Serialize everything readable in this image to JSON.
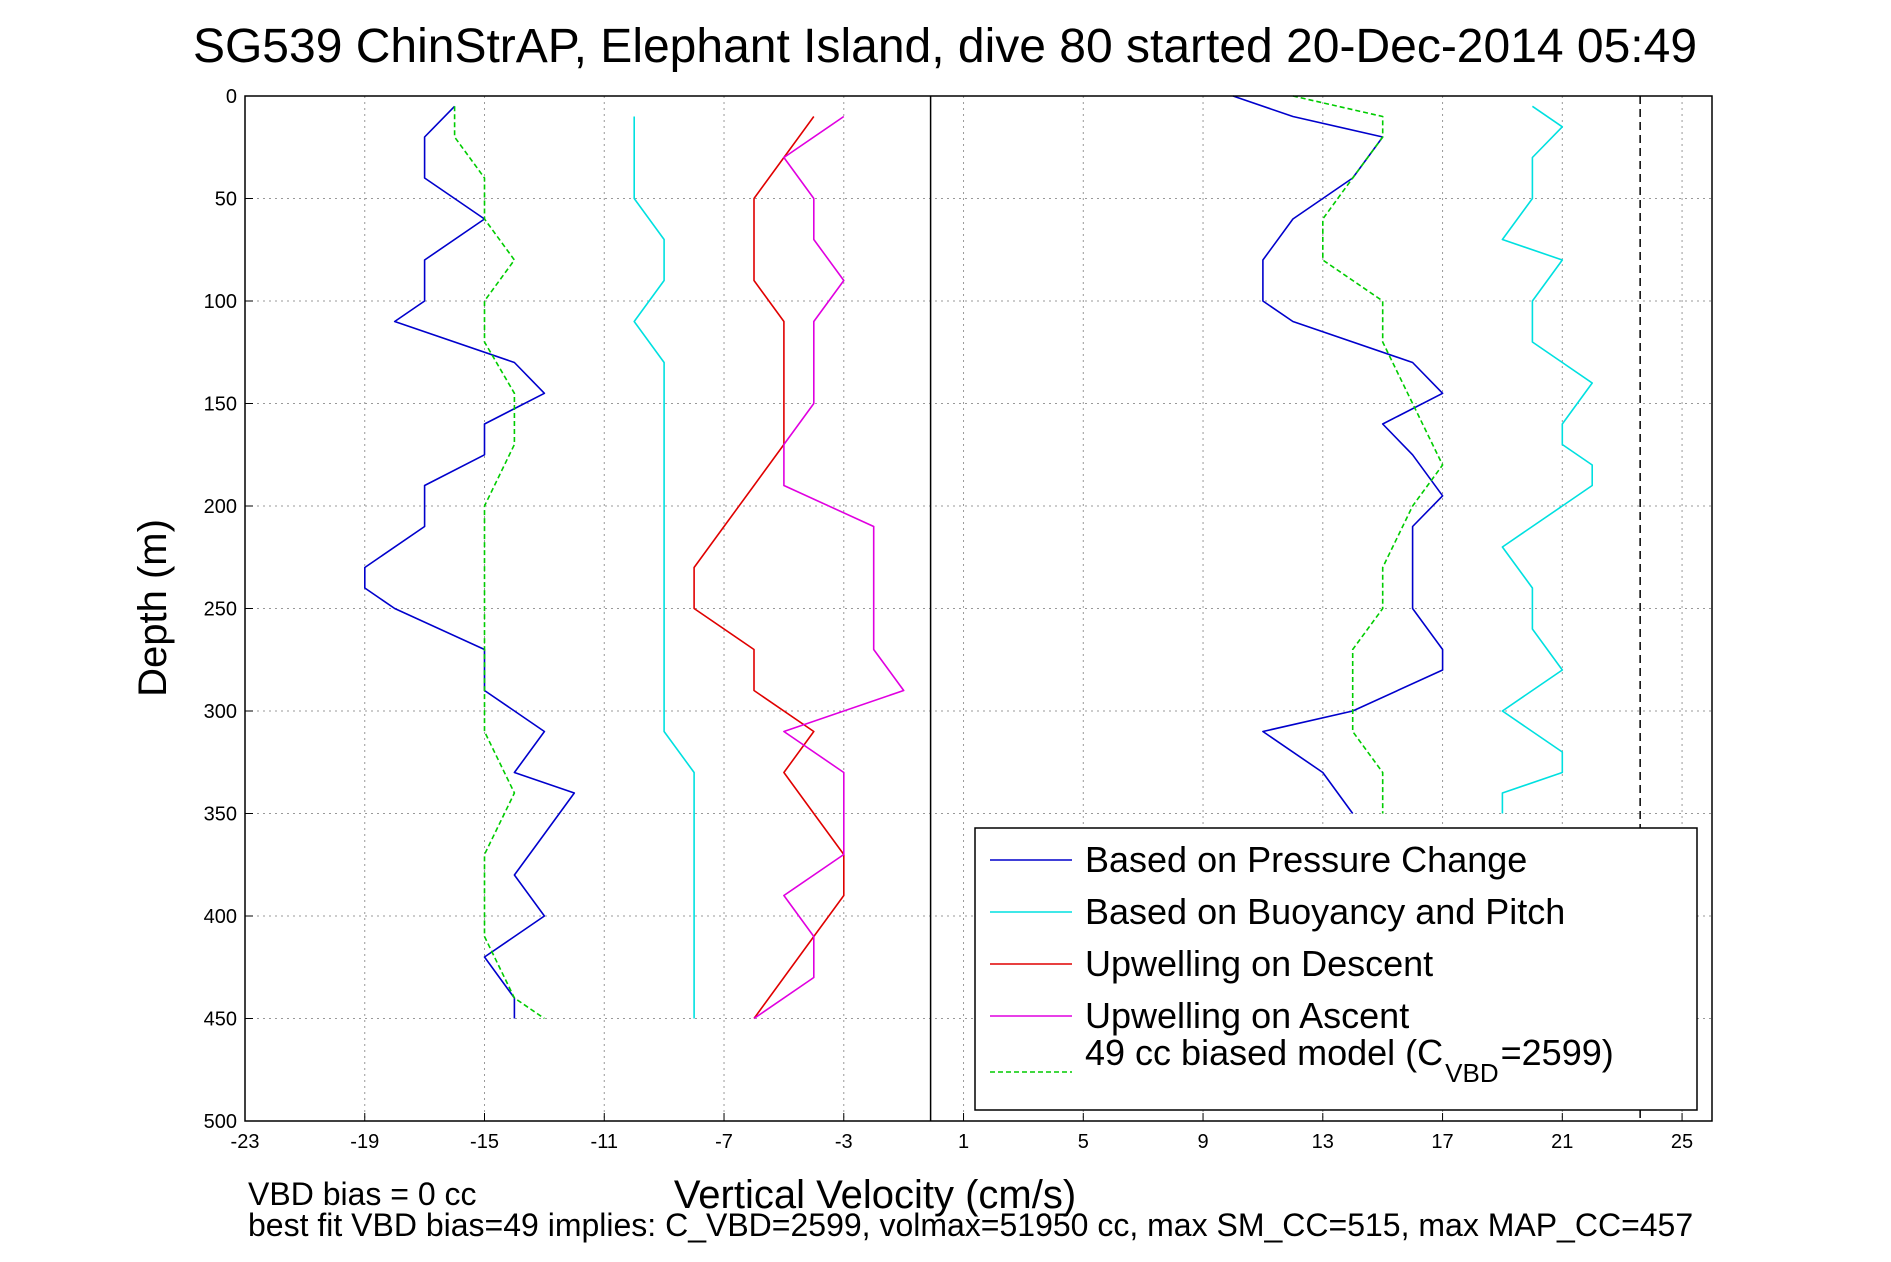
{
  "chart_data": {
    "type": "line",
    "title": "SG539 ChinStrAP, Elephant Island, dive 80 started 20-Dec-2014 05:49",
    "xlabel": "Vertical Velocity (cm/s)",
    "ylabel": "Depth (m)",
    "xlim": [
      -23,
      26
    ],
    "ylim": [
      0,
      500
    ],
    "y_reversed": true,
    "grid": true,
    "xticks": [
      -23,
      -19,
      -15,
      -11,
      -7,
      -3,
      1,
      5,
      9,
      13,
      17,
      21,
      25
    ],
    "yticks": [
      0,
      50,
      100,
      150,
      200,
      250,
      300,
      350,
      400,
      450,
      500
    ],
    "vlines": [
      {
        "x": -0.1,
        "style": "solid"
      },
      {
        "x": 23.6,
        "style": "dashed"
      }
    ],
    "legend_position": "bottom-right",
    "series": [
      {
        "name": "Based on Pressure Change",
        "color": "#0000cc",
        "points": [
          [
            -16,
            5
          ],
          [
            -17,
            20
          ],
          [
            -17,
            40
          ],
          [
            -15,
            60
          ],
          [
            -17,
            80
          ],
          [
            -17,
            100
          ],
          [
            -18,
            110
          ],
          [
            -14,
            130
          ],
          [
            -13,
            145
          ],
          [
            -15,
            160
          ],
          [
            -15,
            175
          ],
          [
            -17,
            190
          ],
          [
            -17,
            210
          ],
          [
            -19,
            230
          ],
          [
            -19,
            240
          ],
          [
            -18,
            250
          ],
          [
            -15,
            270
          ],
          [
            -15,
            290
          ],
          [
            -13,
            310
          ],
          [
            -14,
            330
          ],
          [
            -12,
            340
          ],
          [
            -13,
            360
          ],
          [
            -14,
            380
          ],
          [
            -13,
            400
          ],
          [
            -15,
            420
          ],
          [
            -14,
            440
          ],
          [
            -14,
            450
          ]
        ]
      },
      {
        "name": "Based on Buoyancy and Pitch",
        "color": "#00e0e0",
        "points": [
          [
            -10,
            10
          ],
          [
            -10,
            30
          ],
          [
            -10,
            50
          ],
          [
            -9,
            70
          ],
          [
            -9,
            90
          ],
          [
            -10,
            110
          ],
          [
            -9,
            130
          ],
          [
            -9,
            150
          ],
          [
            -9,
            170
          ],
          [
            -9,
            190
          ],
          [
            -9,
            210
          ],
          [
            -9,
            230
          ],
          [
            -9,
            250
          ],
          [
            -9,
            270
          ],
          [
            -9,
            290
          ],
          [
            -9,
            310
          ],
          [
            -8,
            330
          ],
          [
            -8,
            350
          ],
          [
            -8,
            370
          ],
          [
            -8,
            390
          ],
          [
            -8,
            410
          ],
          [
            -8,
            430
          ],
          [
            -8,
            450
          ]
        ]
      },
      {
        "name": "Upwelling on Descent",
        "color": "#e00000",
        "points": [
          [
            -4,
            10
          ],
          [
            -5,
            30
          ],
          [
            -6,
            50
          ],
          [
            -6,
            70
          ],
          [
            -6,
            90
          ],
          [
            -5,
            110
          ],
          [
            -5,
            130
          ],
          [
            -5,
            150
          ],
          [
            -5,
            170
          ],
          [
            -6,
            190
          ],
          [
            -7,
            210
          ],
          [
            -8,
            230
          ],
          [
            -8,
            250
          ],
          [
            -6,
            270
          ],
          [
            -6,
            290
          ],
          [
            -4,
            310
          ],
          [
            -5,
            330
          ],
          [
            -4,
            350
          ],
          [
            -3,
            370
          ],
          [
            -3,
            390
          ],
          [
            -4,
            410
          ],
          [
            -5,
            430
          ],
          [
            -6,
            450
          ]
        ]
      },
      {
        "name": "Upwelling on Ascent",
        "color": "#e000e0",
        "points": [
          [
            -3,
            10
          ],
          [
            -5,
            30
          ],
          [
            -4,
            50
          ],
          [
            -4,
            70
          ],
          [
            -3,
            90
          ],
          [
            -4,
            110
          ],
          [
            -4,
            130
          ],
          [
            -4,
            150
          ],
          [
            -5,
            170
          ],
          [
            -5,
            190
          ],
          [
            -2,
            210
          ],
          [
            -2,
            230
          ],
          [
            -2,
            250
          ],
          [
            -2,
            270
          ],
          [
            -1,
            290
          ],
          [
            -5,
            310
          ],
          [
            -3,
            330
          ],
          [
            -3,
            350
          ],
          [
            -3,
            370
          ],
          [
            -5,
            390
          ],
          [
            -4,
            410
          ],
          [
            -4,
            430
          ],
          [
            -6,
            450
          ]
        ]
      },
      {
        "name": "49 cc biased model (C_VBD=2599)",
        "color": "#00cc00",
        "dashed": true,
        "points": [
          [
            -16,
            5
          ],
          [
            -16,
            20
          ],
          [
            -15,
            40
          ],
          [
            -15,
            60
          ],
          [
            -14,
            80
          ],
          [
            -15,
            100
          ],
          [
            -15,
            120
          ],
          [
            -14,
            145
          ],
          [
            -14,
            170
          ],
          [
            -15,
            200
          ],
          [
            -15,
            230
          ],
          [
            -15,
            260
          ],
          [
            -15,
            290
          ],
          [
            -15,
            310
          ],
          [
            -14,
            340
          ],
          [
            -15,
            370
          ],
          [
            -15,
            390
          ],
          [
            -15,
            410
          ],
          [
            -14,
            440
          ],
          [
            -13,
            450
          ]
        ]
      },
      {
        "name": "",
        "color": "#0000cc",
        "points": [
          [
            10,
            0
          ],
          [
            12,
            10
          ],
          [
            15,
            20
          ],
          [
            14,
            40
          ],
          [
            12,
            60
          ],
          [
            11,
            80
          ],
          [
            11,
            100
          ],
          [
            12,
            110
          ],
          [
            16,
            130
          ],
          [
            17,
            145
          ],
          [
            15,
            160
          ],
          [
            16,
            175
          ],
          [
            17,
            195
          ],
          [
            16,
            210
          ],
          [
            16,
            230
          ],
          [
            16,
            250
          ],
          [
            17,
            270
          ],
          [
            17,
            280
          ],
          [
            14,
            300
          ],
          [
            11,
            310
          ],
          [
            13,
            330
          ],
          [
            14,
            350
          ]
        ]
      },
      {
        "name": "",
        "color": "#00e0e0",
        "points": [
          [
            20,
            5
          ],
          [
            21,
            15
          ],
          [
            20,
            30
          ],
          [
            20,
            50
          ],
          [
            19,
            70
          ],
          [
            21,
            80
          ],
          [
            20,
            100
          ],
          [
            20,
            120
          ],
          [
            21,
            130
          ],
          [
            22,
            140
          ],
          [
            21,
            160
          ],
          [
            21,
            170
          ],
          [
            22,
            180
          ],
          [
            22,
            190
          ],
          [
            21,
            200
          ],
          [
            19,
            220
          ],
          [
            20,
            240
          ],
          [
            20,
            260
          ],
          [
            21,
            280
          ],
          [
            19,
            300
          ],
          [
            21,
            320
          ],
          [
            21,
            330
          ],
          [
            19,
            340
          ],
          [
            19,
            350
          ]
        ]
      },
      {
        "name": "",
        "color": "#00cc00",
        "dashed": true,
        "points": [
          [
            12,
            0
          ],
          [
            15,
            10
          ],
          [
            15,
            20
          ],
          [
            14,
            40
          ],
          [
            13,
            60
          ],
          [
            13,
            80
          ],
          [
            15,
            100
          ],
          [
            15,
            120
          ],
          [
            16,
            150
          ],
          [
            17,
            180
          ],
          [
            16,
            200
          ],
          [
            15,
            230
          ],
          [
            15,
            250
          ],
          [
            14,
            270
          ],
          [
            14,
            290
          ],
          [
            14,
            310
          ],
          [
            15,
            330
          ],
          [
            15,
            350
          ]
        ]
      }
    ]
  },
  "legend": {
    "items": [
      {
        "label": "Based on Pressure Change",
        "color": "#0000cc",
        "dash": ""
      },
      {
        "label": "Based on Buoyancy and Pitch",
        "color": "#00e0e0",
        "dash": ""
      },
      {
        "label": "Upwelling on Descent",
        "color": "#e00000",
        "dash": ""
      },
      {
        "label": "Upwelling on Ascent",
        "color": "#e000e0",
        "dash": ""
      }
    ],
    "model": {
      "color": "#00cc00",
      "prefix": "49 cc biased model (C",
      "sub": "VBD",
      "suffix": "=2599)"
    }
  },
  "notes": {
    "vbd_bias": "VBD bias = 0 cc",
    "best_fit": "best fit VBD bias=49 implies: C_VBD=2599, volmax=51950 cc, max SM_CC=515, max MAP_CC=457"
  }
}
